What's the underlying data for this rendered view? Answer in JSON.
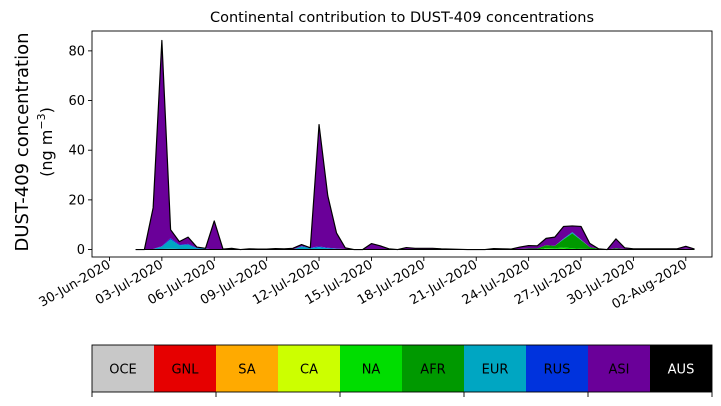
{
  "chart_data": {
    "type": "area",
    "stacked": true,
    "title": "Continental contribution to DUST-409 concentrations",
    "ylabel_line1": "DUST-409 concentration",
    "ylabel_line2_prefix": "(ng m",
    "ylabel_line2_exp": "−3",
    "ylabel_line2_suffix": ")",
    "xlabel": "",
    "ylim": [
      -3,
      88
    ],
    "xlim": [
      "2020-06-29T00:00",
      "2020-08-03T12:00"
    ],
    "y_ticks": [
      0,
      20,
      40,
      60,
      80
    ],
    "x_ticks": [
      {
        "date": "2020-06-30",
        "label": "30-Jun-2020"
      },
      {
        "date": "2020-07-03",
        "label": "03-Jul-2020"
      },
      {
        "date": "2020-07-06",
        "label": "06-Jul-2020"
      },
      {
        "date": "2020-07-09",
        "label": "09-Jul-2020"
      },
      {
        "date": "2020-07-12",
        "label": "12-Jul-2020"
      },
      {
        "date": "2020-07-15",
        "label": "15-Jul-2020"
      },
      {
        "date": "2020-07-18",
        "label": "18-Jul-2020"
      },
      {
        "date": "2020-07-21",
        "label": "21-Jul-2020"
      },
      {
        "date": "2020-07-24",
        "label": "24-Jul-2020"
      },
      {
        "date": "2020-07-27",
        "label": "27-Jul-2020"
      },
      {
        "date": "2020-07-30",
        "label": "30-Jul-2020"
      },
      {
        "date": "2020-08-02",
        "label": "02-Aug-2020"
      }
    ],
    "x": [
      "2020-07-01T12:00",
      "2020-07-02T00:00",
      "2020-07-02T12:00",
      "2020-07-03T00:00",
      "2020-07-03T12:00",
      "2020-07-04T00:00",
      "2020-07-04T12:00",
      "2020-07-05T00:00",
      "2020-07-05T12:00",
      "2020-07-06T00:00",
      "2020-07-06T12:00",
      "2020-07-07T00:00",
      "2020-07-07T12:00",
      "2020-07-08T00:00",
      "2020-07-08T12:00",
      "2020-07-09T00:00",
      "2020-07-09T12:00",
      "2020-07-10T00:00",
      "2020-07-10T12:00",
      "2020-07-11T00:00",
      "2020-07-11T12:00",
      "2020-07-12T00:00",
      "2020-07-12T12:00",
      "2020-07-13T00:00",
      "2020-07-13T12:00",
      "2020-07-14T00:00",
      "2020-07-14T12:00",
      "2020-07-15T00:00",
      "2020-07-15T12:00",
      "2020-07-16T00:00",
      "2020-07-16T12:00",
      "2020-07-17T00:00",
      "2020-07-17T12:00",
      "2020-07-18T00:00",
      "2020-07-18T12:00",
      "2020-07-19T00:00",
      "2020-07-19T12:00",
      "2020-07-20T00:00",
      "2020-07-20T12:00",
      "2020-07-21T00:00",
      "2020-07-21T12:00",
      "2020-07-22T00:00",
      "2020-07-22T12:00",
      "2020-07-23T00:00",
      "2020-07-23T12:00",
      "2020-07-24T00:00",
      "2020-07-24T12:00",
      "2020-07-25T00:00",
      "2020-07-25T12:00",
      "2020-07-26T00:00",
      "2020-07-26T12:00",
      "2020-07-27T00:00",
      "2020-07-27T12:00",
      "2020-07-28T00:00",
      "2020-07-28T12:00",
      "2020-07-29T00:00",
      "2020-07-29T12:00",
      "2020-07-30T00:00",
      "2020-07-30T12:00",
      "2020-07-31T00:00",
      "2020-07-31T12:00",
      "2020-08-01T00:00",
      "2020-08-01T12:00",
      "2020-08-02T00:00",
      "2020-08-02T12:00"
    ],
    "series": [
      {
        "name": "OCE",
        "color": "#c8c8c8",
        "values": [
          0,
          0,
          0,
          0,
          0,
          0,
          0,
          0,
          0,
          0,
          0,
          0,
          0,
          0,
          0,
          0,
          0,
          0,
          0,
          0,
          0,
          0,
          0,
          0,
          0,
          0,
          0,
          0,
          0,
          0,
          0,
          0,
          0,
          0,
          0,
          0,
          0,
          0,
          0,
          0,
          0,
          0,
          0,
          0,
          0,
          0,
          0,
          0,
          0,
          0,
          0,
          0,
          0,
          0,
          0,
          0,
          0,
          0,
          0,
          0,
          0,
          0,
          0,
          0,
          0
        ]
      },
      {
        "name": "GNL",
        "color": "#e60000",
        "values": [
          0,
          0,
          0,
          0,
          0,
          0,
          0,
          0,
          0,
          0,
          0,
          0,
          0,
          0,
          0,
          0,
          0,
          0,
          0,
          0,
          0,
          0,
          0,
          0,
          0,
          0,
          0,
          0,
          0,
          0,
          0,
          0,
          0,
          0,
          0,
          0,
          0,
          0,
          0,
          0,
          0,
          0,
          0,
          0,
          0,
          0,
          0,
          0,
          0,
          0,
          0,
          0,
          0,
          0,
          0,
          0,
          0,
          0,
          0,
          0,
          0,
          0,
          0,
          0,
          0
        ]
      },
      {
        "name": "SA",
        "color": "#ffaa00",
        "values": [
          0,
          0,
          0,
          0,
          0,
          0,
          0,
          0,
          0,
          0,
          0,
          0,
          0,
          0,
          0,
          0,
          0,
          0,
          0,
          0,
          0,
          0,
          0,
          0,
          0,
          0,
          0,
          0,
          0,
          0,
          0,
          0,
          0,
          0,
          0,
          0,
          0,
          0,
          0,
          0,
          0,
          0,
          0,
          0,
          0,
          0,
          0,
          0,
          0,
          0,
          0,
          0,
          0,
          0,
          0,
          0,
          0,
          0,
          0,
          0,
          0,
          0,
          0,
          0,
          0
        ]
      },
      {
        "name": "CA",
        "color": "#ccff00",
        "values": [
          0,
          0,
          0,
          0,
          0,
          0,
          0,
          0,
          0,
          0,
          0.1,
          0,
          0,
          0,
          0.2,
          0.2,
          0.3,
          0.2,
          0,
          0,
          0,
          0,
          0,
          0,
          0,
          0,
          0,
          0,
          0,
          0,
          0,
          0,
          0,
          0,
          0.2,
          0.3,
          0.2,
          0.1,
          0,
          0,
          0,
          0,
          0.1,
          0,
          0,
          0,
          0,
          0.3,
          0.2,
          0.3,
          0,
          0,
          0,
          0,
          0,
          0,
          0,
          0,
          0,
          0,
          0,
          0,
          0,
          0,
          0
        ]
      },
      {
        "name": "NA",
        "color": "#00dd00",
        "values": [
          0,
          0,
          0,
          0.2,
          0.3,
          0.2,
          0.2,
          0,
          0,
          0,
          0,
          0,
          0,
          0,
          0,
          0,
          0,
          0,
          0,
          0.2,
          0,
          0,
          0,
          0,
          0,
          0,
          0,
          0,
          0,
          0,
          0,
          0,
          0,
          0,
          0,
          0,
          0,
          0,
          0,
          0,
          0,
          0,
          0,
          0,
          0,
          0,
          0,
          0.3,
          0.3,
          0.5,
          0.5,
          0.3,
          0.2,
          0,
          0,
          0,
          0,
          0,
          0,
          0,
          0,
          0,
          0,
          0,
          0
        ]
      },
      {
        "name": "AFR",
        "color": "#009900",
        "values": [
          0,
          0,
          0,
          0,
          0,
          0,
          0,
          0,
          0,
          0,
          0,
          0,
          0,
          0,
          0,
          0,
          0,
          0,
          0,
          0,
          0,
          0,
          0,
          0,
          0,
          0,
          0,
          0,
          0,
          0,
          0,
          0,
          0,
          0,
          0,
          0,
          0,
          0,
          0,
          0,
          0,
          0,
          0,
          0,
          0.2,
          0.4,
          0.4,
          1.2,
          1,
          3.3,
          6,
          3.5,
          0.8,
          0.3,
          0,
          0.5,
          0.2,
          0,
          0,
          0,
          0,
          0,
          0,
          0.3,
          0
        ]
      },
      {
        "name": "EUR",
        "color": "#00a6c2",
        "values": [
          0,
          0,
          0.2,
          1,
          3.8,
          1.5,
          1.8,
          0.5,
          0.3,
          0,
          0,
          0,
          0,
          0,
          0,
          0,
          0,
          0,
          0,
          1,
          0.5,
          1,
          0.5,
          0.3,
          0.2,
          0,
          0,
          0,
          0,
          0,
          0,
          0,
          0,
          0,
          0,
          0,
          0,
          0,
          0,
          0,
          0,
          0,
          0,
          0,
          0,
          0,
          0,
          0,
          0,
          0.3,
          0.5,
          0.2,
          0,
          0,
          0,
          0,
          0,
          0,
          0,
          0,
          0,
          0,
          0,
          0,
          0
        ]
      },
      {
        "name": "RUS",
        "color": "#0033dd",
        "values": [
          0,
          0,
          0,
          0.2,
          0.5,
          0.3,
          0.3,
          0.2,
          0.1,
          0,
          0,
          0,
          0,
          0,
          0,
          0,
          0,
          0,
          0,
          0.2,
          0.2,
          0.3,
          0.2,
          0.1,
          0,
          0,
          0,
          0,
          0,
          0,
          0,
          0,
          0,
          0,
          0,
          0,
          0,
          0,
          0,
          0,
          0,
          0,
          0,
          0,
          0,
          0,
          0,
          0,
          0,
          0,
          0,
          0,
          0,
          0,
          0,
          0,
          0,
          0,
          0,
          0,
          0,
          0,
          0,
          0,
          0
        ]
      },
      {
        "name": "ASI",
        "color": "#6a0099",
        "values": [
          0,
          0,
          16.6,
          82.8,
          3.4,
          1.2,
          2.7,
          0.3,
          0.1,
          11.5,
          0.1,
          0.5,
          0,
          0.3,
          0,
          0,
          0.1,
          0.1,
          0.5,
          0.6,
          0,
          49,
          21,
          6.3,
          0.5,
          0,
          0,
          2.4,
          1.5,
          0.3,
          0,
          0.8,
          0.5,
          0.5,
          0.3,
          0,
          0,
          0,
          0,
          0,
          0,
          0.4,
          0.2,
          0.2,
          0.8,
          1.2,
          1.1,
          2.7,
          3.5,
          4.9,
          2.5,
          5.3,
          1.5,
          0,
          0,
          3.8,
          0.5,
          0.3,
          0.3,
          0.3,
          0.3,
          0.3,
          0.3,
          1,
          0.2
        ]
      },
      {
        "name": "AUS",
        "color": "#000000",
        "values": [
          0,
          0,
          0,
          0,
          0,
          0,
          0,
          0,
          0,
          0,
          0,
          0,
          0,
          0,
          0,
          0,
          0,
          0,
          0,
          0,
          0,
          0,
          0,
          0,
          0,
          0,
          0,
          0,
          0,
          0,
          0,
          0,
          0,
          0,
          0,
          0,
          0,
          0,
          0,
          0,
          0,
          0,
          0,
          0,
          0,
          0,
          0,
          0,
          0,
          0,
          0,
          0,
          0,
          0,
          0,
          0,
          0,
          0,
          0,
          0,
          0,
          0,
          0,
          0,
          0
        ]
      }
    ],
    "colorbar": {
      "labels": [
        "OCE",
        "GNL",
        "SA",
        "CA",
        "NA",
        "AFR",
        "EUR",
        "RUS",
        "ASI",
        "AUS"
      ],
      "colors": [
        "#c8c8c8",
        "#e60000",
        "#ffaa00",
        "#ccff00",
        "#00dd00",
        "#009900",
        "#00a6c2",
        "#0033dd",
        "#6a0099",
        "#000000"
      ],
      "text_colors": [
        "#000000",
        "#000000",
        "#000000",
        "#000000",
        "#000000",
        "#000000",
        "#000000",
        "#000000",
        "#000000",
        "#ffffff"
      ]
    }
  }
}
